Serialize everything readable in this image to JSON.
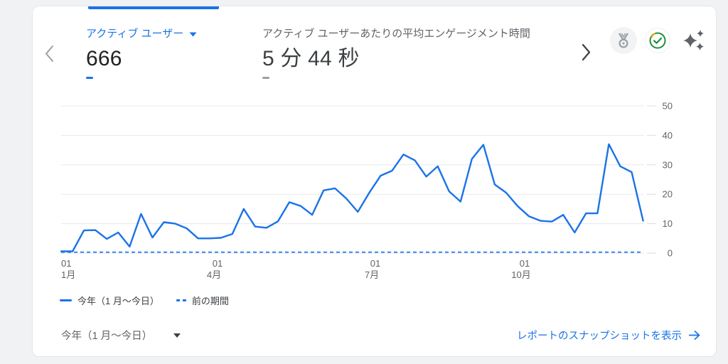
{
  "colors": {
    "accent": "#1a73e8",
    "background": "#f0f2f4",
    "label_gray": "#5f6368",
    "value_dark": "#202124",
    "grid": "#e8eaed",
    "check_green": "#1e8e3e",
    "check_yellow": "#f9ab00"
  },
  "metrics": [
    {
      "label": "アクティブ ユーザー",
      "value": "666",
      "selected": true
    },
    {
      "label": "アクティブ ユーザーあたりの平均エンゲージメント時間",
      "value": "5 分 44 秒",
      "selected": false
    }
  ],
  "header_icons": [
    {
      "name": "benchmarking-medal-icon"
    },
    {
      "name": "data-quality-check-icon"
    },
    {
      "name": "insights-sparkle-icon"
    }
  ],
  "chart_data": {
    "type": "line",
    "x_ticks": [
      {
        "day": "01",
        "month": "1月"
      },
      {
        "day": "01",
        "month": "4月"
      },
      {
        "day": "01",
        "month": "7月"
      },
      {
        "day": "01",
        "month": "10月"
      }
    ],
    "y_ticks": [
      0,
      10,
      20,
      30,
      40,
      50
    ],
    "ylim": [
      0,
      50
    ],
    "y_axis_side": "right",
    "grid": true,
    "legend_position": "bottom",
    "series": [
      {
        "name": "今年（1 月～今日）",
        "style": "solid",
        "color": "#1a73e8",
        "values": [
          0.6,
          0.6,
          7.7,
          7.8,
          4.8,
          7,
          2.2,
          13.3,
          5.3,
          10.5,
          10,
          8.4,
          5,
          5,
          5.2,
          6.5,
          15,
          9,
          8.6,
          10.8,
          17.3,
          16,
          13,
          21.3,
          22,
          18.5,
          14,
          20.5,
          26.3,
          28,
          33.5,
          31.5,
          26,
          29.5,
          21,
          17.5,
          32,
          36.8,
          23.3,
          20.5,
          16,
          12.5,
          11,
          10.7,
          13,
          7,
          13.5,
          13.5,
          37,
          29.5,
          27.5,
          11
        ]
      },
      {
        "name": "前の期間",
        "style": "dashed",
        "color": "#1a73e8",
        "values": [
          0.3,
          0.3
        ]
      }
    ]
  },
  "legend": [
    {
      "label": "今年（1 月～今日）",
      "swatch": "solid"
    },
    {
      "label": "前の期間",
      "swatch": "dashed"
    }
  ],
  "footer": {
    "date_range": "今年（1 月～今日）",
    "snapshot_link": "レポートのスナップショットを表示"
  }
}
